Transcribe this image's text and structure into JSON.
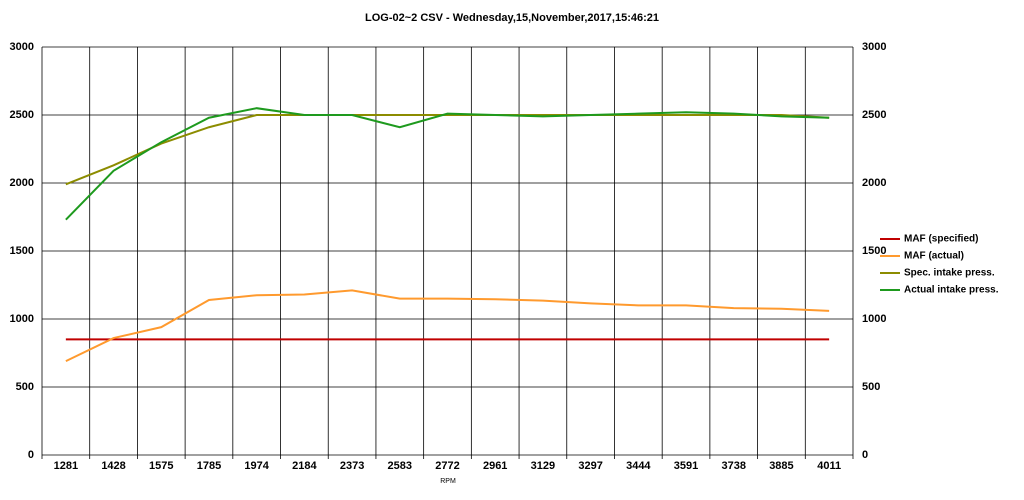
{
  "chart_data": {
    "type": "line",
    "title": "LOG-02~2 CSV - Wednesday,15,November,2017,15:46:21",
    "x_label": "RPM",
    "categories": [
      "1281",
      "1428",
      "1575",
      "1785",
      "1974",
      "2184",
      "2373",
      "2583",
      "2772",
      "2961",
      "3129",
      "3297",
      "3444",
      "3591",
      "3738",
      "3885",
      "4011"
    ],
    "series": [
      {
        "name": "MAF (specified)",
        "color": "#c00000",
        "values": [
          850,
          850,
          850,
          850,
          850,
          850,
          850,
          850,
          850,
          850,
          850,
          850,
          850,
          850,
          850,
          850,
          850
        ]
      },
      {
        "name": "MAF (actual)",
        "color": "#ff9a2e",
        "values": [
          690,
          860,
          940,
          1140,
          1175,
          1180,
          1210,
          1150,
          1150,
          1145,
          1135,
          1115,
          1100,
          1100,
          1080,
          1075,
          1060
        ]
      },
      {
        "name": "Spec. intake press.",
        "color": "#8c8c00",
        "values": [
          1990,
          2130,
          2290,
          2410,
          2500,
          2500,
          2500,
          2500,
          2500,
          2500,
          2500,
          2500,
          2500,
          2500,
          2500,
          2500,
          2480
        ]
      },
      {
        "name": "Actual intake press.",
        "color": "#1e9a1e",
        "values": [
          1730,
          2090,
          2300,
          2480,
          2550,
          2500,
          2500,
          2410,
          2510,
          2500,
          2490,
          2500,
          2510,
          2520,
          2510,
          2490,
          2480
        ]
      }
    ],
    "ylim": [
      0,
      3000
    ],
    "yticks": [
      0,
      500,
      1000,
      1500,
      2000,
      2500,
      3000
    ],
    "y2lim": [
      0,
      3000
    ],
    "y2ticks": [
      0,
      500,
      1000,
      1500,
      2000,
      2500,
      3000
    ],
    "grid": true,
    "legend": "right"
  }
}
